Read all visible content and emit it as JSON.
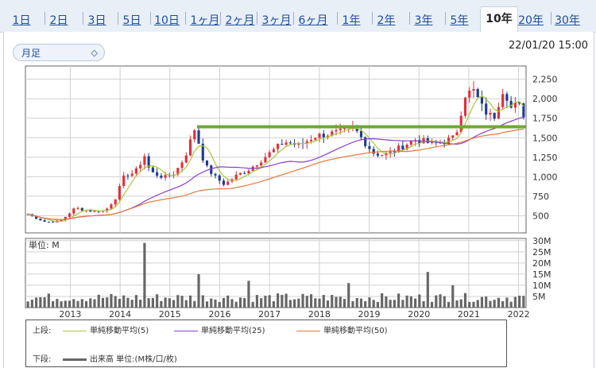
{
  "tabs": {
    "items": [
      "1日",
      "2日",
      "3日",
      "5日",
      "10日",
      "1ヶ月",
      "2ヶ月",
      "3ヶ月",
      "6ヶ月",
      "1年",
      "2年",
      "3年",
      "5年",
      "10年",
      "20年",
      "30年"
    ],
    "active_index": 13
  },
  "period_select": {
    "value": "月足"
  },
  "timestamp": "22/01/20 15:00",
  "volume_unit_label": "単位: M",
  "legend": {
    "upper_label": "上段:",
    "lower_label": "下段:",
    "ma": [
      {
        "label": "単純移動平均(5)",
        "color": "#a8c83c"
      },
      {
        "label": "単純移動平均(25)",
        "color": "#8a3fd0"
      },
      {
        "label": "単純移動平均(50)",
        "color": "#e8783c"
      }
    ],
    "volume": {
      "label": "出来高 単位:(M株/口/枚)",
      "color": "#666666"
    }
  },
  "chart_data": {
    "type": "candlestick",
    "price_axis": {
      "ticks": [
        500,
        750,
        1000,
        1250,
        1500,
        1750,
        2000,
        2250
      ],
      "tick_labels": [
        "500",
        "750",
        "1,000",
        "1,250",
        "1,500",
        "1,750",
        "2,000",
        "2,250"
      ],
      "range": [
        280,
        2420
      ]
    },
    "volume_axis": {
      "ticks": [
        5,
        10,
        15,
        20,
        25,
        30
      ],
      "tick_labels": [
        "5M",
        "10M",
        "15M",
        "20M",
        "25M",
        "30M"
      ],
      "range": [
        0,
        31
      ]
    },
    "x_axis": {
      "year_labels": [
        "2013",
        "2014",
        "2015",
        "2016",
        "2017",
        "2018",
        "2019",
        "2020",
        "2021",
        "2022"
      ],
      "start_year": 2012.1,
      "end_year": 2022.15
    },
    "horizontal_line": {
      "value": 1640,
      "color": "#70a838"
    },
    "anchors": [
      [
        2012.15,
        520
      ],
      [
        2012.5,
        420
      ],
      [
        2012.8,
        430
      ],
      [
        2013.1,
        600
      ],
      [
        2013.4,
        560
      ],
      [
        2013.7,
        560
      ],
      [
        2013.9,
        720
      ],
      [
        2014.1,
        1030
      ],
      [
        2014.3,
        1050
      ],
      [
        2014.5,
        1280
      ],
      [
        2014.6,
        1060
      ],
      [
        2014.9,
        990
      ],
      [
        2015.1,
        1050
      ],
      [
        2015.3,
        1250
      ],
      [
        2015.5,
        1620
      ],
      [
        2015.7,
        1150
      ],
      [
        2015.9,
        1000
      ],
      [
        2016.1,
        900
      ],
      [
        2016.3,
        1000
      ],
      [
        2016.6,
        1100
      ],
      [
        2016.9,
        1250
      ],
      [
        2017.1,
        1350
      ],
      [
        2017.3,
        1450
      ],
      [
        2017.6,
        1400
      ],
      [
        2017.9,
        1520
      ],
      [
        2018.2,
        1550
      ],
      [
        2018.5,
        1580
      ],
      [
        2018.7,
        1620
      ],
      [
        2018.9,
        1450
      ],
      [
        2019.1,
        1300
      ],
      [
        2019.3,
        1280
      ],
      [
        2019.5,
        1330
      ],
      [
        2019.7,
        1400
      ],
      [
        2019.9,
        1480
      ],
      [
        2020.1,
        1450
      ],
      [
        2020.3,
        1420
      ],
      [
        2020.5,
        1450
      ],
      [
        2020.7,
        1500
      ],
      [
        2020.8,
        1650
      ],
      [
        2020.9,
        2050
      ],
      [
        2021.1,
        2100
      ],
      [
        2021.3,
        1850
      ],
      [
        2021.5,
        1750
      ],
      [
        2021.7,
        2150
      ],
      [
        2021.85,
        1880
      ],
      [
        2022.0,
        1950
      ],
      [
        2022.05,
        1800
      ]
    ],
    "volume_spikes": [
      [
        2014.5,
        29
      ],
      [
        2015.6,
        15
      ],
      [
        2016.6,
        12
      ],
      [
        2018.6,
        11
      ],
      [
        2020.15,
        16
      ],
      [
        2020.7,
        10
      ]
    ]
  }
}
